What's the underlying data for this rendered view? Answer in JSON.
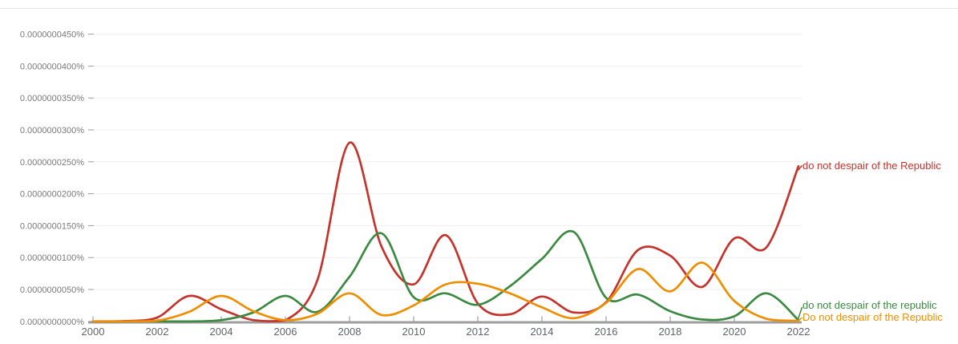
{
  "chart_data": {
    "type": "line",
    "x": [
      2000,
      2001,
      2002,
      2003,
      2004,
      2005,
      2006,
      2007,
      2008,
      2009,
      2010,
      2011,
      2012,
      2013,
      2014,
      2015,
      2016,
      2017,
      2018,
      2019,
      2020,
      2021,
      2022
    ],
    "x_axis": {
      "tick_labels": [
        "2000",
        "2002",
        "2004",
        "2006",
        "2008",
        "2010",
        "2012",
        "2014",
        "2016",
        "2018",
        "2020",
        "2022"
      ],
      "range": [
        2000,
        2022
      ]
    },
    "y_axis": {
      "tick_labels": [
        "0.0000000000%",
        "0.0000000050%",
        "0.0000000100%",
        "0.0000000150%",
        "0.0000000200%",
        "0.0000000250%",
        "0.0000000300%",
        "0.0000000350%",
        "0.0000000400%",
        "0.0000000450%"
      ],
      "min": 0,
      "max": 45,
      "step": 5,
      "value_unit": "percent x 1e-9 (read from axis tick labels)"
    },
    "grid": true,
    "legend_position": "right-end-labels",
    "series": [
      {
        "name": "do not despair of the Republic",
        "color": "#c5342c",
        "values": [
          0,
          0.05,
          0.6,
          4.0,
          1.9,
          0.2,
          0.15,
          6.5,
          28.0,
          11.7,
          5.8,
          13.5,
          2.8,
          1.1,
          3.9,
          1.4,
          3.0,
          11.2,
          10.3,
          5.4,
          13.0,
          11.6,
          24.3
        ]
      },
      {
        "name": "do not despair of the republic",
        "color": "#3c8a42",
        "values": [
          0,
          0,
          0,
          0,
          0.2,
          1.4,
          4.0,
          1.5,
          7.0,
          13.8,
          3.8,
          4.4,
          2.6,
          5.5,
          9.8,
          14.0,
          3.7,
          4.2,
          1.6,
          0.3,
          0.8,
          4.4,
          0.2
        ]
      },
      {
        "name": "Do not despair of the Republic",
        "color": "#ef8e00",
        "values": [
          0,
          0,
          0.1,
          1.5,
          4.0,
          1.6,
          0.2,
          1.2,
          4.4,
          1.0,
          2.5,
          5.8,
          5.9,
          4.4,
          2.2,
          0.5,
          2.9,
          8.2,
          4.7,
          9.2,
          3.2,
          0.4,
          0.1
        ]
      }
    ]
  }
}
